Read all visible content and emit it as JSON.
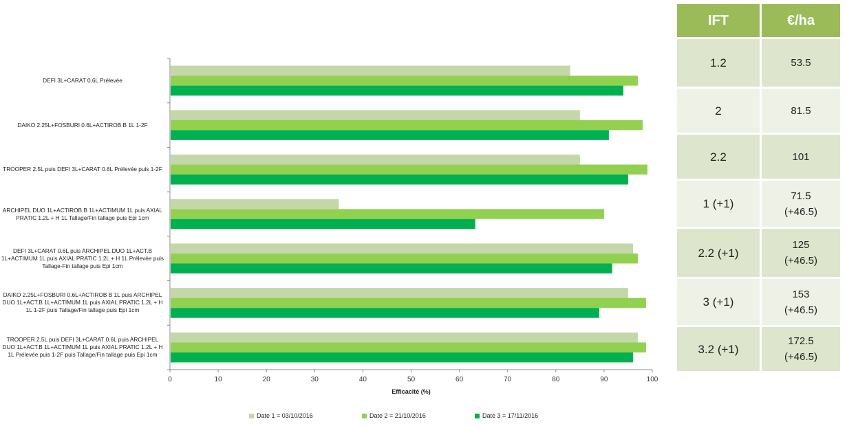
{
  "chart_data": {
    "type": "bar",
    "orientation": "horizontal",
    "categories": [
      "DEFI 3L+CARAT 0.6L Prélevée",
      "DAIKO 2.25L+FOSBURI 0.6L+ACTIROB B 1L 1-2F",
      "TROOPER 2.5L puis DEFI 3L+CARAT 0.6L Prélevée puis 1-2F",
      "ARCHIPEL DUO 1L+ACTIROB.B 1L+ACTIMUM 1L puis AXIAL PRATIC 1.2L + H 1L Tallage/Fin tallage puis Epi 1cm",
      "DEFI 3L+CARAT 0.6L puis ARCHIPEL DUO 1L+ACT.B 1L+ACTIMUM 1L puis AXIAL PRATIC 1.2L + H 1L Prélevée puis Tallage-Fin tallage puis Epi 1cm",
      "DAIKO 2.25L+FOSBURI 0.6L+ACTIROB B 1L puis ARCHIPEL DUO 1L+ACT.B 1L+ACTIMUM 1L puis AXIAL PRATIC 1.2L + H 1L 1-2F puis Tallage/Fin tallage puis Epi 1cm",
      "TROOPER 2.5L puis DEFI 3L+CARAT 0.6L puis ARCHIPEL DUO 1L+ACT.B 1L+ACTIMUM 1L puis AXIAL PRATIC 1.2L + H 1L Prélevée puis 1-2F puis Tallage/Fin   tallage puis Epi 1cm"
    ],
    "series": [
      {
        "name": "Date 1 = 03/10/2016",
        "color": "#c4d7a8",
        "values": [
          83,
          85,
          85,
          35,
          96,
          95,
          97
        ]
      },
      {
        "name": "Date 2 = 21/10/2016",
        "color": "#92d050",
        "values": [
          97,
          98,
          99,
          90,
          97,
          98.7,
          98.7
        ]
      },
      {
        "name": "Date 3 = 17/11/2016",
        "color": "#00b050",
        "values": [
          94,
          91,
          95,
          63.3,
          91.7,
          89,
          96
        ]
      }
    ],
    "xlabel": "Efficacité (%)",
    "ylabel": "",
    "xlim": [
      0,
      100
    ],
    "xticks": [
      "0",
      "10",
      "20",
      "30",
      "40",
      "50",
      "60",
      "70",
      "80",
      "90",
      "100"
    ],
    "grid": false,
    "legend_position": "bottom"
  },
  "table": {
    "header_color": "#9bbb59",
    "headers": [
      "IFT",
      "€/ha"
    ],
    "rows": [
      {
        "ift": "1.2",
        "cost": "53.5"
      },
      {
        "ift": "2",
        "cost": "81.5"
      },
      {
        "ift": "2.2",
        "cost": "101"
      },
      {
        "ift": "1 (+1)",
        "cost": "71.5\n(+46.5)"
      },
      {
        "ift": "2.2 (+1)",
        "cost": "125\n(+46.5)"
      },
      {
        "ift": "3 (+1)",
        "cost": "153\n(+46.5)"
      },
      {
        "ift": "3.2 (+1)",
        "cost": "172.5\n(+46.5)"
      }
    ]
  }
}
